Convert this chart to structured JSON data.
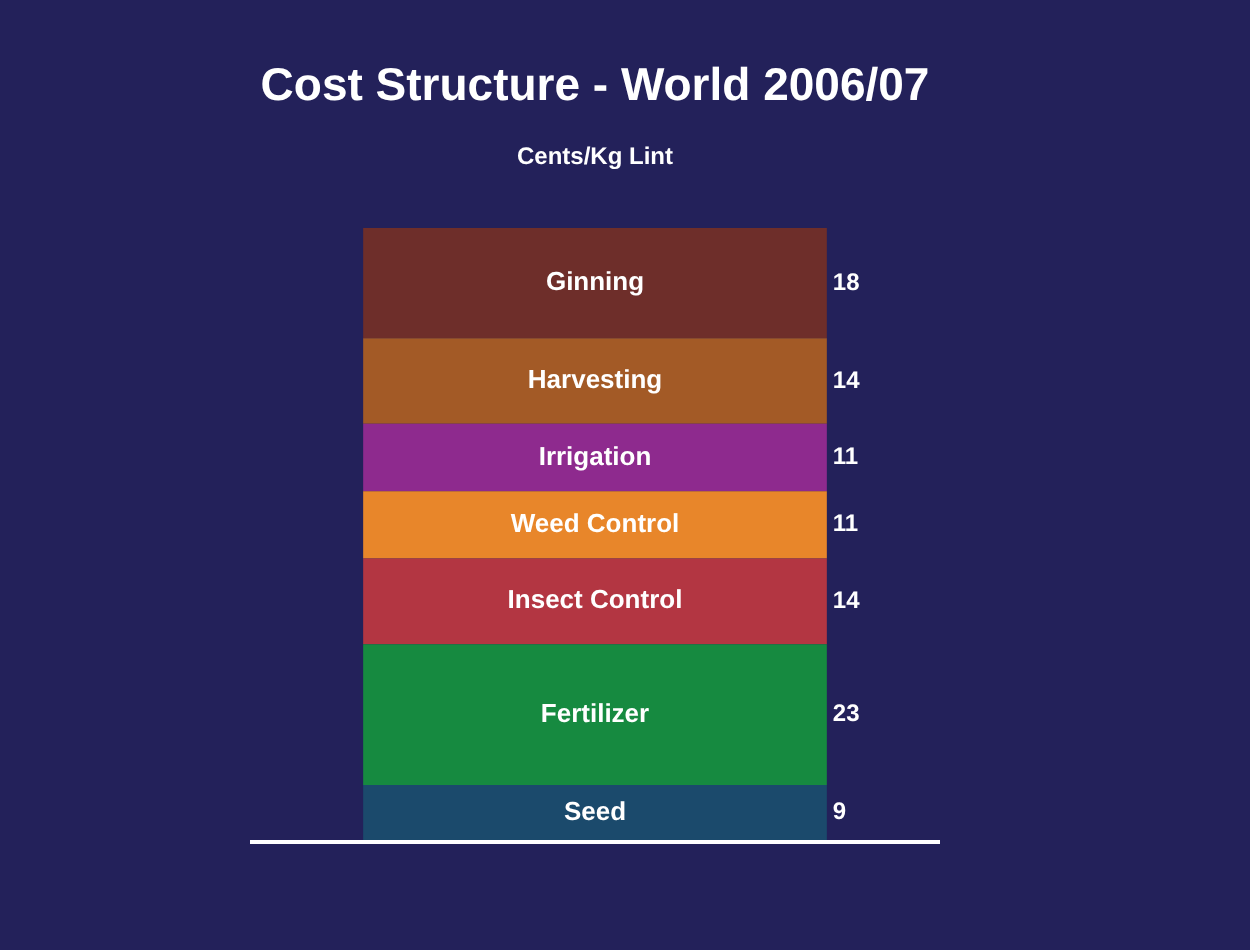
{
  "chart_data": {
    "type": "bar",
    "stacked": true,
    "title": "Cost Structure - World 2006/07",
    "subtitle": "Cents/Kg Lint",
    "categories": [
      null
    ],
    "data_labels": true,
    "legend": false,
    "series": [
      {
        "name": "Seed",
        "color": "#1b4a6c",
        "values": [
          9
        ]
      },
      {
        "name": "Fertilizer",
        "color": "#168a40",
        "values": [
          23
        ]
      },
      {
        "name": "Insect Control",
        "color": "#b33642",
        "values": [
          14
        ]
      },
      {
        "name": "Weed Control",
        "color": "#e8862a",
        "values": [
          11
        ]
      },
      {
        "name": "Irrigation",
        "color": "#8e2a8e",
        "values": [
          11
        ]
      },
      {
        "name": "Harvesting",
        "color": "#a35a26",
        "values": [
          14
        ]
      },
      {
        "name": "Ginning",
        "color": "#6e2e2a",
        "values": [
          18
        ]
      }
    ]
  }
}
